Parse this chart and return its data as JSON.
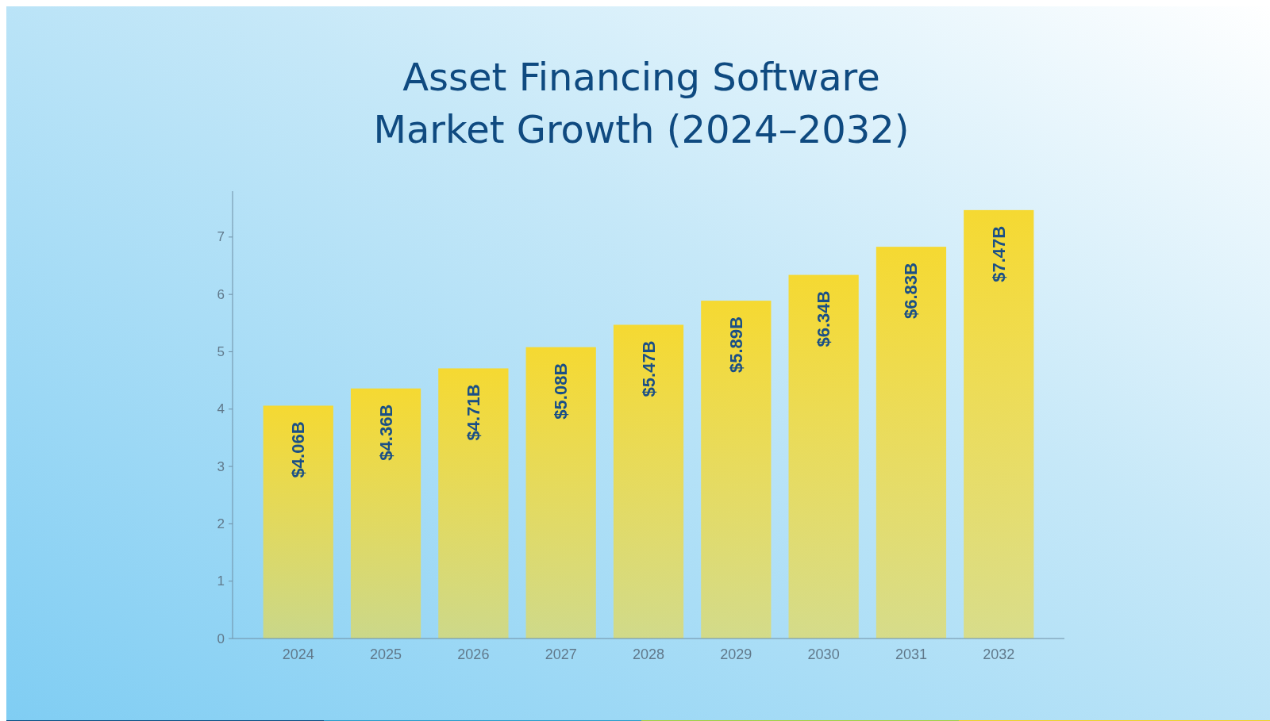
{
  "chart_data": {
    "type": "bar",
    "title": "Asset Financing Software\nMarket Growth (2024–2032)",
    "categories": [
      "2024",
      "2025",
      "2026",
      "2027",
      "2028",
      "2029",
      "2030",
      "2031",
      "2032"
    ],
    "values": [
      4.06,
      4.36,
      4.71,
      5.08,
      5.47,
      5.89,
      6.34,
      6.83,
      7.47
    ],
    "value_labels": [
      "$4.06B",
      "$4.36B",
      "$4.71B",
      "$5.08B",
      "$5.47B",
      "$5.89B",
      "$6.34B",
      "$6.83B",
      "$7.47B"
    ],
    "color": "#f5d932",
    "ylim": [
      0,
      7.8
    ],
    "yticks": [
      0,
      1,
      2,
      3,
      4,
      5,
      6,
      7
    ],
    "grid": false
  }
}
